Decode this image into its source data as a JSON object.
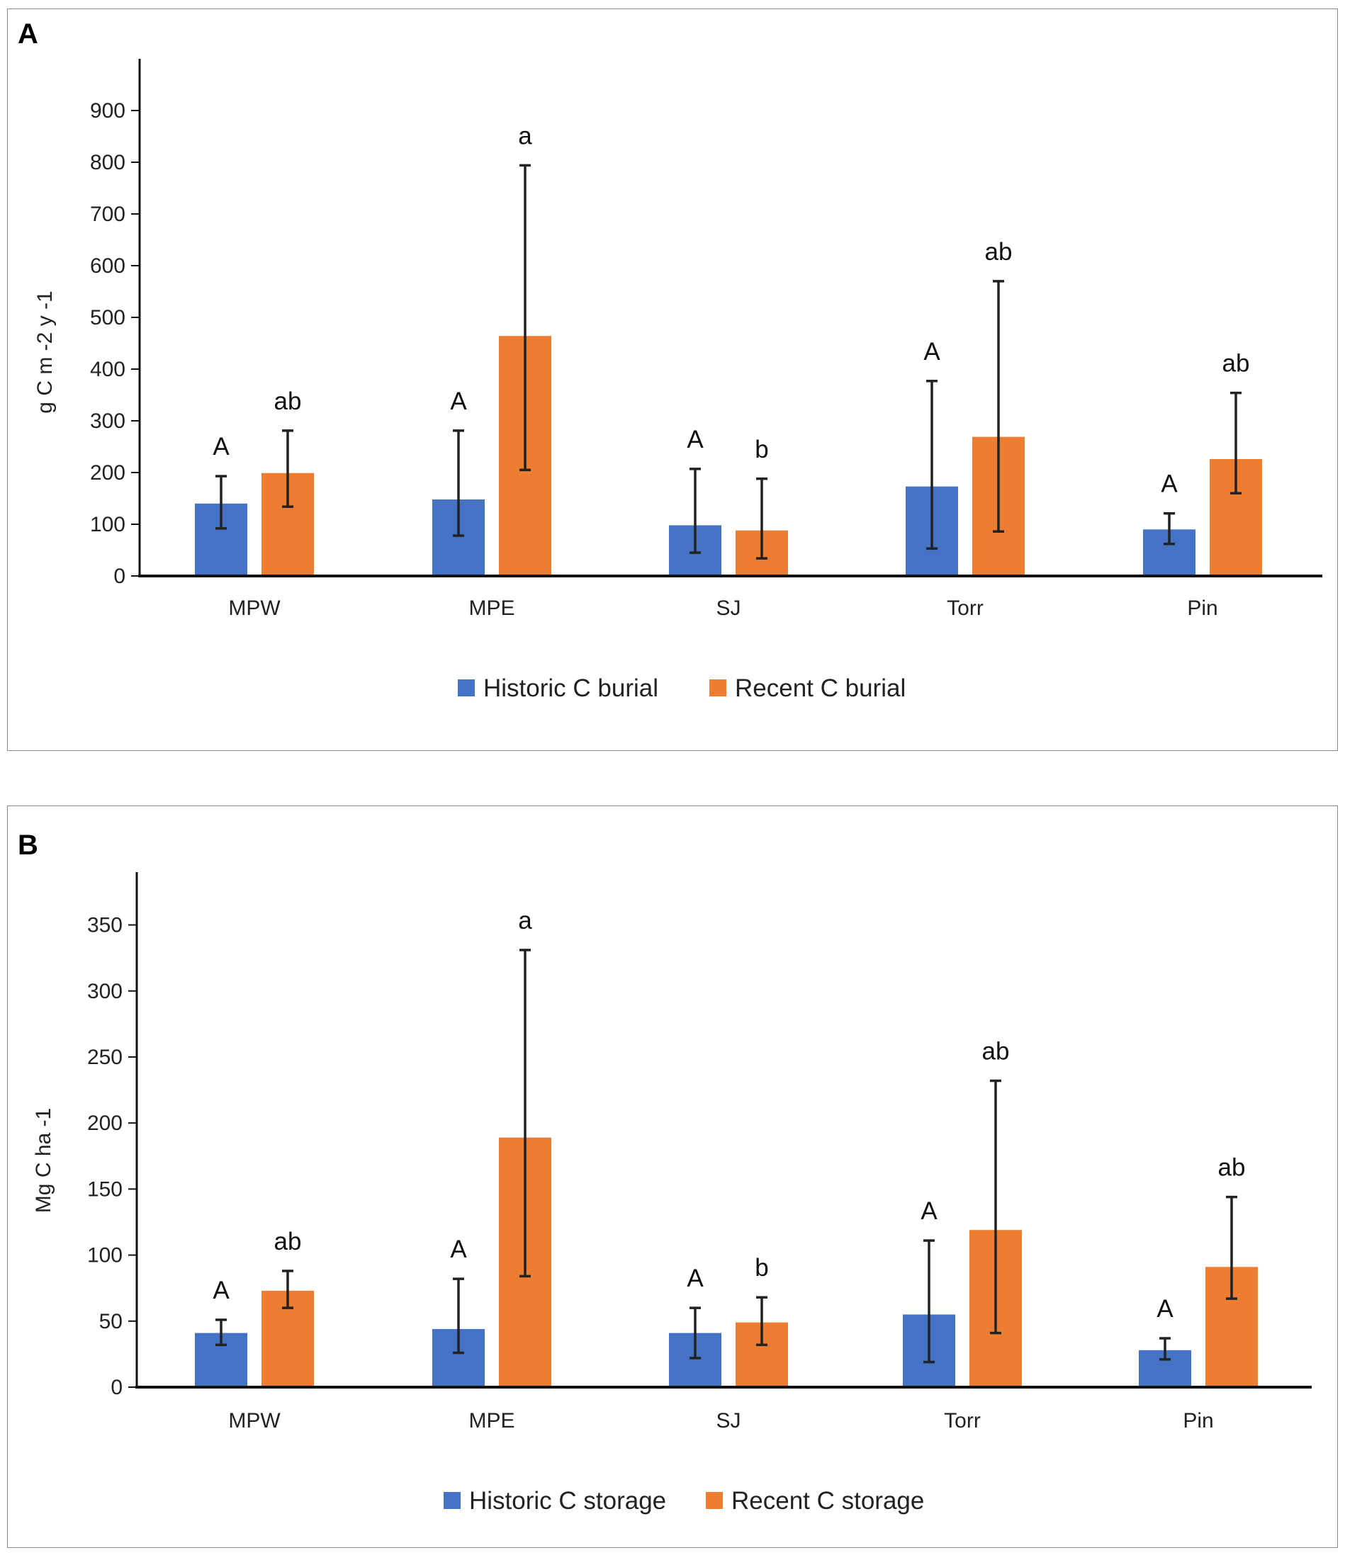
{
  "chart_data": [
    {
      "panel": "A",
      "type": "bar",
      "title": "",
      "ylabel": "g C m -2 y -1",
      "xlabel": "",
      "ylim": [
        0,
        1000
      ],
      "yticks": [
        0,
        100,
        200,
        300,
        400,
        500,
        600,
        700,
        800,
        900
      ],
      "categories": [
        "MPW",
        "MPE",
        "SJ",
        "Torr",
        "Pin"
      ],
      "series": [
        {
          "name": "Historic C burial",
          "color": "#4472C4",
          "values": [
            140,
            148,
            98,
            173,
            90
          ],
          "error_low": [
            92,
            78,
            45,
            53,
            62
          ],
          "error_high": [
            193,
            281,
            207,
            377,
            121
          ],
          "letters": [
            "A",
            "A",
            "A",
            "A",
            "A"
          ]
        },
        {
          "name": "Recent C burial",
          "color": "#ED7D31",
          "values": [
            199,
            464,
            88,
            269,
            226
          ],
          "error_low": [
            134,
            205,
            34,
            86,
            160
          ],
          "error_high": [
            281,
            794,
            188,
            570,
            354
          ],
          "letters": [
            "ab",
            "a",
            "b",
            "ab",
            "ab"
          ]
        }
      ],
      "legend": "bottom"
    },
    {
      "panel": "B",
      "type": "bar",
      "title": "",
      "ylabel": "Mg C ha -1",
      "xlabel": "",
      "ylim": [
        0,
        390
      ],
      "yticks": [
        0,
        50,
        100,
        150,
        200,
        250,
        300,
        350
      ],
      "categories": [
        "MPW",
        "MPE",
        "SJ",
        "Torr",
        "Pin"
      ],
      "series": [
        {
          "name": "Historic C storage",
          "color": "#4472C4",
          "values": [
            41,
            44,
            41,
            55,
            28
          ],
          "error_low": [
            32,
            26,
            22,
            19,
            21
          ],
          "error_high": [
            51,
            82,
            60,
            111,
            37
          ],
          "letters": [
            "A",
            "A",
            "A",
            "A",
            "A"
          ]
        },
        {
          "name": "Recent C storage",
          "color": "#ED7D31",
          "values": [
            73,
            189,
            49,
            119,
            91
          ],
          "error_low": [
            60,
            84,
            32,
            41,
            67
          ],
          "error_high": [
            88,
            331,
            68,
            232,
            144
          ],
          "letters": [
            "ab",
            "a",
            "b",
            "ab",
            "ab"
          ]
        }
      ],
      "legend": "bottom"
    }
  ]
}
